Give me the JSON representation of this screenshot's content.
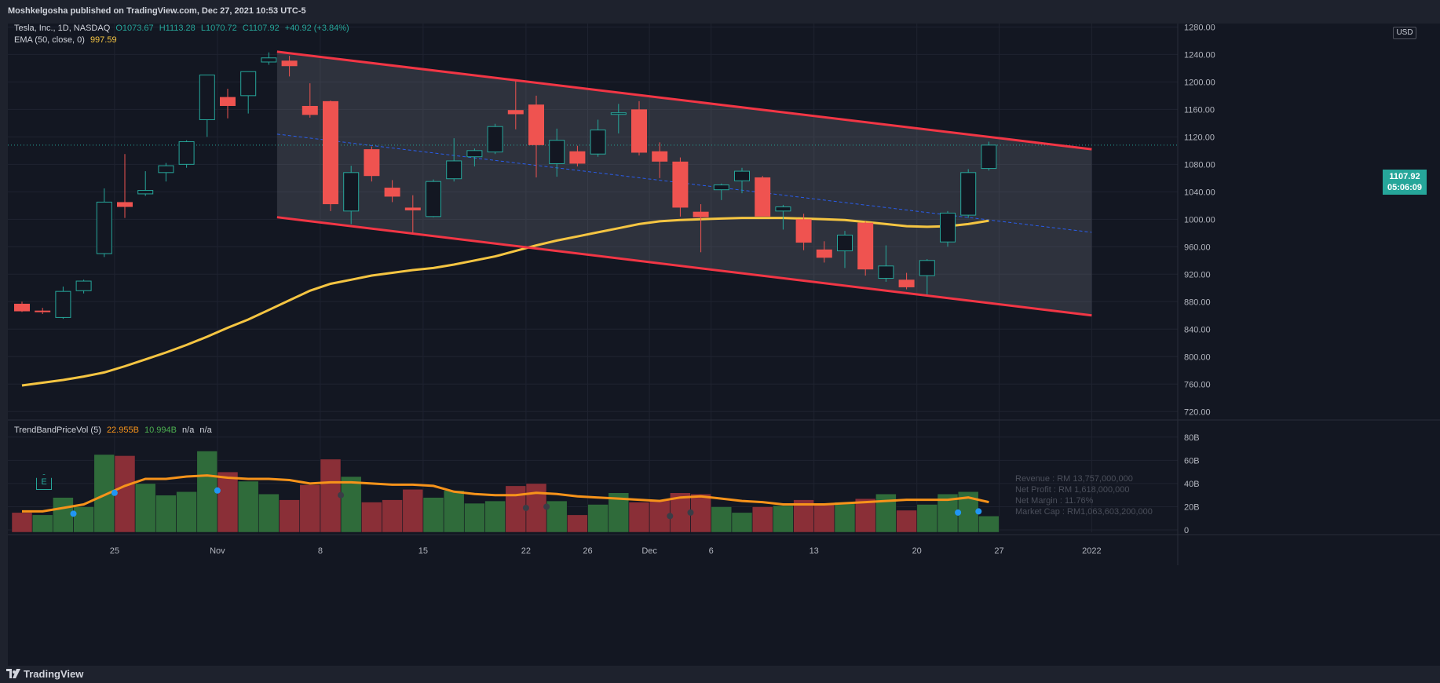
{
  "header": {
    "text": "Moshkelgosha published on TradingView.com, Dec 27, 2021 10:53 UTC-5"
  },
  "legend": {
    "symbol": "Tesla, Inc., 1D, NASDAQ",
    "open": "O1073.67",
    "high": "H1113.28",
    "low": "L1070.72",
    "close": "C1107.92",
    "change": "+40.92 (+3.84%)",
    "ema_label": "EMA (50, close, 0)",
    "ema_value": "997.59"
  },
  "volume_legend": {
    "label": "TrendBandPriceVol (5)",
    "v1": "22.955B",
    "v2": "10.994B",
    "na1": "n/a",
    "na2": "n/a"
  },
  "currency": "USD",
  "last_price": {
    "price": "1107.92",
    "countdown": "05:06:09"
  },
  "earnings_marker": "E",
  "fundamentals": [
    "Revenue : RM 13,757,000,000",
    "Net Profit : RM 1,618,000,000",
    "Net Margin : 11.76%",
    "Market Cap : RM1,063,603,200,000"
  ],
  "footer": {
    "brand": "TradingView"
  },
  "colors": {
    "up": "#26a69a",
    "down": "#ef5350",
    "ema": "#f5c542",
    "channel": "#f23645",
    "vol_up": "#2f6b3a",
    "vol_down": "#8a2f37"
  },
  "chart_data": [
    {
      "type": "candlestick",
      "title": "Tesla, Inc., 1D, NASDAQ",
      "y_ticks": [
        720,
        760,
        800,
        840,
        880,
        920,
        960,
        1000,
        1040,
        1080,
        1120,
        1160,
        1200,
        1240,
        1280
      ],
      "ylim": [
        710,
        1285
      ],
      "x_ticks": [
        {
          "label": "25",
          "i": 4.5
        },
        {
          "label": "Nov",
          "i": 9.5
        },
        {
          "label": "8",
          "i": 14.5
        },
        {
          "label": "15",
          "i": 19.5
        },
        {
          "label": "22",
          "i": 24.5
        },
        {
          "label": "26",
          "i": 27.5
        },
        {
          "label": "Dec",
          "i": 30.5
        },
        {
          "label": "6",
          "i": 33.5
        },
        {
          "label": "13",
          "i": 38.5
        },
        {
          "label": "20",
          "i": 43.5
        },
        {
          "label": "27",
          "i": 47.5
        },
        {
          "label": "2022",
          "i": 52
        }
      ],
      "candles": [
        {
          "o": 877,
          "h": 880,
          "l": 865,
          "c": 866
        },
        {
          "o": 867,
          "h": 871,
          "l": 862,
          "c": 866
        },
        {
          "o": 857,
          "h": 902,
          "l": 855,
          "c": 895
        },
        {
          "o": 896,
          "h": 912,
          "l": 892,
          "c": 910
        },
        {
          "o": 950,
          "h": 1045,
          "l": 945,
          "c": 1025
        },
        {
          "o": 1025,
          "h": 1095,
          "l": 1002,
          "c": 1018
        },
        {
          "o": 1037,
          "h": 1070,
          "l": 1034,
          "c": 1042
        },
        {
          "o": 1068,
          "h": 1082,
          "l": 1055,
          "c": 1078
        },
        {
          "o": 1080,
          "h": 1115,
          "l": 1075,
          "c": 1113
        },
        {
          "o": 1145,
          "h": 1210,
          "l": 1120,
          "c": 1210
        },
        {
          "o": 1178,
          "h": 1190,
          "l": 1147,
          "c": 1165
        },
        {
          "o": 1180,
          "h": 1215,
          "l": 1154,
          "c": 1215
        },
        {
          "o": 1229,
          "h": 1243,
          "l": 1225,
          "c": 1235
        },
        {
          "o": 1231,
          "h": 1238,
          "l": 1208,
          "c": 1223
        },
        {
          "o": 1165,
          "h": 1198,
          "l": 1148,
          "c": 1152
        },
        {
          "o": 1172,
          "h": 1173,
          "l": 1012,
          "c": 1022
        },
        {
          "o": 1012,
          "h": 1078,
          "l": 993,
          "c": 1068
        },
        {
          "o": 1102,
          "h": 1106,
          "l": 1055,
          "c": 1063
        },
        {
          "o": 1046,
          "h": 1057,
          "l": 1025,
          "c": 1033
        },
        {
          "o": 1017,
          "h": 1035,
          "l": 978,
          "c": 1013
        },
        {
          "o": 1004,
          "h": 1058,
          "l": 1003,
          "c": 1055
        },
        {
          "o": 1059,
          "h": 1118,
          "l": 1055,
          "c": 1085
        },
        {
          "o": 1091,
          "h": 1103,
          "l": 1077,
          "c": 1100
        },
        {
          "o": 1098,
          "h": 1139,
          "l": 1095,
          "c": 1135
        },
        {
          "o": 1159,
          "h": 1202,
          "l": 1131,
          "c": 1153
        },
        {
          "o": 1167,
          "h": 1180,
          "l": 1061,
          "c": 1108
        },
        {
          "o": 1081,
          "h": 1132,
          "l": 1062,
          "c": 1115
        },
        {
          "o": 1099,
          "h": 1107,
          "l": 1077,
          "c": 1081
        },
        {
          "o": 1095,
          "h": 1145,
          "l": 1091,
          "c": 1130
        },
        {
          "o": 1155,
          "h": 1168,
          "l": 1125,
          "c": 1155
        },
        {
          "o": 1160,
          "h": 1172,
          "l": 1093,
          "c": 1097
        },
        {
          "o": 1099,
          "h": 1112,
          "l": 1060,
          "c": 1084
        },
        {
          "o": 1084,
          "h": 1090,
          "l": 1004,
          "c": 1017
        },
        {
          "o": 1011,
          "h": 1022,
          "l": 952,
          "c": 1003
        },
        {
          "o": 1043,
          "h": 1052,
          "l": 1028,
          "c": 1050
        },
        {
          "o": 1056,
          "h": 1075,
          "l": 1038,
          "c": 1070
        },
        {
          "o": 1061,
          "h": 1063,
          "l": 1005,
          "c": 1004
        },
        {
          "o": 1012,
          "h": 1021,
          "l": 985,
          "c": 1018
        },
        {
          "o": 1000,
          "h": 1008,
          "l": 955,
          "c": 966
        },
        {
          "o": 956,
          "h": 968,
          "l": 937,
          "c": 944
        },
        {
          "o": 954,
          "h": 983,
          "l": 929,
          "c": 977
        },
        {
          "o": 995,
          "h": 997,
          "l": 918,
          "c": 927
        },
        {
          "o": 914,
          "h": 962,
          "l": 909,
          "c": 932
        },
        {
          "o": 912,
          "h": 922,
          "l": 898,
          "c": 901
        },
        {
          "o": 918,
          "h": 942,
          "l": 888,
          "c": 940
        },
        {
          "o": 967,
          "h": 1012,
          "l": 960,
          "c": 1009
        },
        {
          "o": 1006,
          "h": 1073,
          "l": 1002,
          "c": 1068
        },
        {
          "o": 1074,
          "h": 1113,
          "l": 1071,
          "c": 1108
        }
      ],
      "ema": [
        758,
        762,
        766,
        771,
        777,
        786,
        796,
        806,
        817,
        829,
        842,
        854,
        868,
        882,
        896,
        906,
        912,
        918,
        922,
        926,
        929,
        934,
        940,
        946,
        954,
        962,
        969,
        975,
        981,
        987,
        993,
        997,
        999,
        1000,
        1001,
        1002,
        1002,
        1002,
        1001,
        1000,
        999,
        996,
        993,
        990,
        989,
        990,
        993,
        998
      ],
      "channel": {
        "upper": {
          "i0": 12.4,
          "v0": 1244,
          "i1": 52,
          "v1": 1102
        },
        "lower": {
          "i0": 12.4,
          "v0": 1003,
          "i1": 52,
          "v1": 860
        },
        "mid": {
          "i0": 12.4,
          "v0": 1124,
          "i1": 52,
          "v1": 981
        }
      }
    },
    {
      "type": "bar",
      "title": "TrendBandPriceVol (5)",
      "y_ticks_label": [
        "0",
        "20B",
        "40B",
        "60B",
        "80B"
      ],
      "y_ticks": [
        0,
        20,
        40,
        60,
        80
      ],
      "ylim": [
        -2,
        90
      ],
      "unit": "B",
      "volumes": [
        15,
        13,
        28,
        20,
        65,
        64,
        40,
        30,
        33,
        68,
        50,
        42,
        31,
        26,
        39,
        61,
        46,
        24,
        26,
        35,
        28,
        34,
        23,
        25,
        38,
        40,
        25,
        13,
        22,
        32,
        24,
        26,
        32,
        31,
        20,
        15,
        20,
        21,
        26,
        22,
        24,
        27,
        31,
        17,
        22,
        31,
        33,
        12
      ],
      "volume_dirs": [
        -1,
        1,
        1,
        1,
        1,
        -1,
        1,
        1,
        1,
        1,
        -1,
        1,
        1,
        -1,
        -1,
        -1,
        1,
        -1,
        -1,
        -1,
        1,
        1,
        1,
        1,
        -1,
        -1,
        1,
        -1,
        1,
        1,
        -1,
        -1,
        -1,
        -1,
        1,
        1,
        -1,
        1,
        -1,
        -1,
        1,
        -1,
        1,
        -1,
        1,
        1,
        1,
        1
      ],
      "trend_line": [
        16,
        16,
        19,
        22,
        30,
        38,
        44,
        44,
        46,
        47,
        45,
        44,
        44,
        43,
        40,
        41,
        41,
        40,
        39,
        39,
        38,
        33,
        31,
        30,
        30,
        32,
        31,
        29,
        28,
        27,
        26,
        25,
        28,
        29,
        27,
        25,
        24,
        22,
        22,
        22,
        23,
        24,
        25,
        26,
        26,
        26,
        28,
        24
      ],
      "dots": [
        {
          "i": 2.5,
          "v": 14,
          "color": "#2196f3"
        },
        {
          "i": 4.5,
          "v": 32,
          "color": "#2196f3"
        },
        {
          "i": 9.5,
          "v": 34,
          "color": "#2196f3"
        },
        {
          "i": 15.5,
          "v": 30,
          "color": "#3a3d46"
        },
        {
          "i": 24.5,
          "v": 19,
          "color": "#3a3d46"
        },
        {
          "i": 25.5,
          "v": 20,
          "color": "#3a3d46"
        },
        {
          "i": 31.5,
          "v": 12,
          "color": "#3a3d46"
        },
        {
          "i": 32.5,
          "v": 15,
          "color": "#3a3d46"
        },
        {
          "i": 45.5,
          "v": 15,
          "color": "#2196f3"
        },
        {
          "i": 46.5,
          "v": 16,
          "color": "#2196f3"
        }
      ]
    }
  ]
}
